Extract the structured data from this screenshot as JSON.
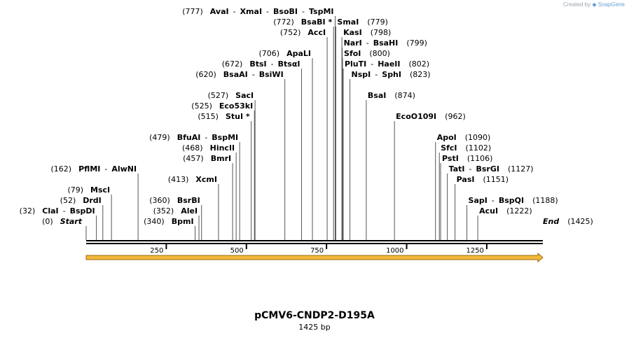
{
  "credit": {
    "prefix": "Created by",
    "brand": "SnapGene"
  },
  "plasmid": {
    "name": "pCMV6-CNDP2-D195A",
    "length_label": "1425 bp"
  },
  "map_data": {
    "length": 1425,
    "ticks": [
      250,
      500,
      750,
      1000,
      1250
    ],
    "start": {
      "pos": 0,
      "pos_label": "(0)",
      "name": "Start"
    },
    "end": {
      "pos": 1425,
      "pos_label": "(1425)",
      "name": "End"
    },
    "sites": [
      {
        "pos": 32,
        "pos_label": "(32)",
        "names": [
          "ClaI",
          "BspDI"
        ],
        "row": 14,
        "side": "left"
      },
      {
        "pos": 52,
        "pos_label": "(52)",
        "names": [
          "DrdI"
        ],
        "row": 15,
        "side": "left"
      },
      {
        "pos": 79,
        "pos_label": "(79)",
        "names": [
          "MscI"
        ],
        "row": 16,
        "side": "left"
      },
      {
        "pos": 162,
        "pos_label": "(162)",
        "names": [
          "PflMI",
          "AlwNI"
        ],
        "row": 18,
        "side": "left"
      },
      {
        "pos": 340,
        "pos_label": "(340)",
        "names": [
          "BpmI"
        ],
        "row": 13,
        "side": "left"
      },
      {
        "pos": 352,
        "pos_label": "(352)",
        "names": [
          "AleI"
        ],
        "row": 14,
        "side": "left"
      },
      {
        "pos": 360,
        "pos_label": "(360)",
        "names": [
          "BsrBI"
        ],
        "row": 15,
        "side": "left"
      },
      {
        "pos": 413,
        "pos_label": "(413)",
        "names": [
          "XcmI"
        ],
        "row": 17,
        "side": "left"
      },
      {
        "pos": 457,
        "pos_label": "(457)",
        "names": [
          "BmrI"
        ],
        "row": 19,
        "side": "left"
      },
      {
        "pos": 468,
        "pos_label": "(468)",
        "names": [
          "HincII"
        ],
        "row": 20,
        "side": "left"
      },
      {
        "pos": 479,
        "pos_label": "(479)",
        "names": [
          "BfuAI",
          "BspMI"
        ],
        "row": 21,
        "side": "left"
      },
      {
        "pos": 515,
        "pos_label": "(515)",
        "names": [
          "StuI *"
        ],
        "row": 23,
        "side": "left"
      },
      {
        "pos": 525,
        "pos_label": "(525)",
        "names": [
          "Eco53kI"
        ],
        "row": 24,
        "side": "left"
      },
      {
        "pos": 527,
        "pos_label": "(527)",
        "names": [
          "SacI"
        ],
        "row": 25,
        "side": "left"
      },
      {
        "pos": 620,
        "pos_label": "(620)",
        "names": [
          "BsaAI",
          "BsiWI"
        ],
        "row": 27,
        "side": "left"
      },
      {
        "pos": 672,
        "pos_label": "(672)",
        "names": [
          "BtsI",
          "BtsαI"
        ],
        "row": 28,
        "side": "left"
      },
      {
        "pos": 706,
        "pos_label": "(706)",
        "names": [
          "ApaLI"
        ],
        "row": 29,
        "side": "left"
      },
      {
        "pos": 752,
        "pos_label": "(752)",
        "names": [
          "AccI"
        ],
        "row": 31,
        "side": "left"
      },
      {
        "pos": 772,
        "pos_label": "(772)",
        "names": [
          "BsaBI *"
        ],
        "row": 32,
        "side": "left"
      },
      {
        "pos": 777,
        "pos_label": "(777)",
        "names": [
          "AvaI",
          "XmaI",
          "BsoBI",
          "TspMI"
        ],
        "row": 33,
        "side": "left"
      },
      {
        "pos": 779,
        "pos_label": "(779)",
        "names": [
          "SmaI"
        ],
        "row": 32,
        "side": "right"
      },
      {
        "pos": 798,
        "pos_label": "(798)",
        "names": [
          "KasI"
        ],
        "row": 31,
        "side": "right"
      },
      {
        "pos": 799,
        "pos_label": "(799)",
        "names": [
          "NarI",
          "BsaHI"
        ],
        "row": 30,
        "side": "right"
      },
      {
        "pos": 800,
        "pos_label": "(800)",
        "names": [
          "SfoI"
        ],
        "row": 29,
        "side": "right"
      },
      {
        "pos": 802,
        "pos_label": "(802)",
        "names": [
          "PluTI",
          "HaeII"
        ],
        "row": 28,
        "side": "right"
      },
      {
        "pos": 823,
        "pos_label": "(823)",
        "names": [
          "NspI",
          "SphI"
        ],
        "row": 27,
        "side": "right"
      },
      {
        "pos": 874,
        "pos_label": "(874)",
        "names": [
          "BsaI"
        ],
        "row": 25,
        "side": "right"
      },
      {
        "pos": 962,
        "pos_label": "(962)",
        "names": [
          "EcoO109I"
        ],
        "row": 23,
        "side": "right"
      },
      {
        "pos": 1090,
        "pos_label": "(1090)",
        "names": [
          "ApoI"
        ],
        "row": 21,
        "side": "right"
      },
      {
        "pos": 1102,
        "pos_label": "(1102)",
        "names": [
          "SfcI"
        ],
        "row": 20,
        "side": "right"
      },
      {
        "pos": 1106,
        "pos_label": "(1106)",
        "names": [
          "PstI"
        ],
        "row": 19,
        "side": "right"
      },
      {
        "pos": 1127,
        "pos_label": "(1127)",
        "names": [
          "TatI",
          "BsrGI"
        ],
        "row": 18,
        "side": "right"
      },
      {
        "pos": 1151,
        "pos_label": "(1151)",
        "names": [
          "PasI"
        ],
        "row": 17,
        "side": "right"
      },
      {
        "pos": 1188,
        "pos_label": "(1188)",
        "names": [
          "SapI",
          "BspQI"
        ],
        "row": 15,
        "side": "right"
      },
      {
        "pos": 1222,
        "pos_label": "(1222)",
        "names": [
          "AcuI"
        ],
        "row": 14,
        "side": "right"
      }
    ],
    "colors": {
      "backbone": "#000000",
      "feature_fill": "#f3b93a",
      "feature_stroke": "#9a6a10",
      "site_line": "#555555",
      "credit": "#9aa3ad"
    }
  }
}
